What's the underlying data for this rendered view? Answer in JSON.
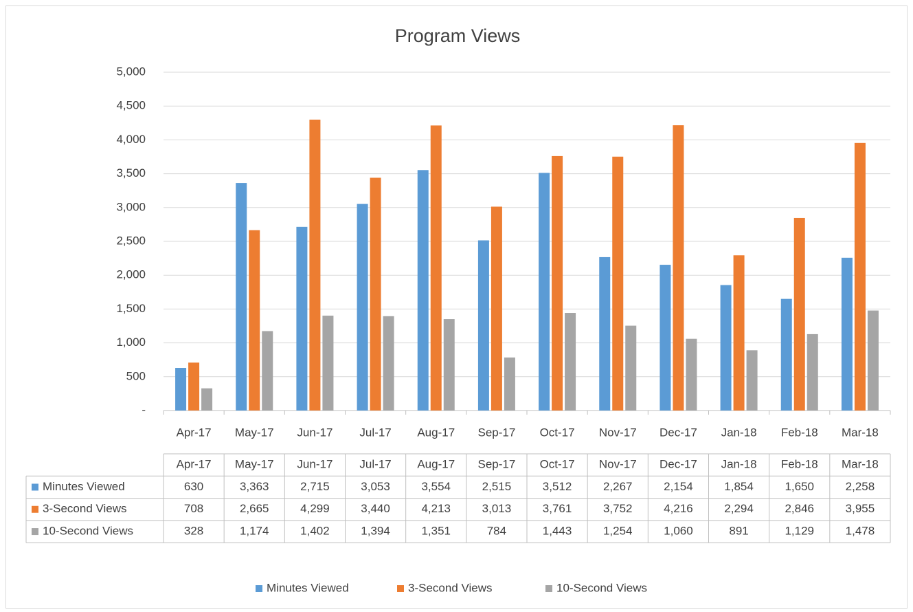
{
  "chart_data": {
    "type": "bar",
    "title": "Program Views",
    "categories": [
      "Apr-17",
      "May-17",
      "Jun-17",
      "Jul-17",
      "Aug-17",
      "Sep-17",
      "Oct-17",
      "Nov-17",
      "Dec-17",
      "Jan-18",
      "Feb-18",
      "Mar-18"
    ],
    "series": [
      {
        "name": "Minutes Viewed",
        "color": "#5b9bd5",
        "values": [
          630,
          3363,
          2715,
          3053,
          3554,
          2515,
          3512,
          2267,
          2154,
          1854,
          1650,
          2258
        ],
        "value_labels": [
          "630",
          "3,363",
          "2,715",
          "3,053",
          "3,554",
          "2,515",
          "3,512",
          "2,267",
          "2,154",
          "1,854",
          "1,650",
          "2,258"
        ]
      },
      {
        "name": "3-Second Views",
        "color": "#ed7d31",
        "values": [
          708,
          2665,
          4299,
          3440,
          4213,
          3013,
          3761,
          3752,
          4216,
          2294,
          2846,
          3955
        ],
        "value_labels": [
          "708",
          "2,665",
          "4,299",
          "3,440",
          "4,213",
          "3,013",
          "3,761",
          "3,752",
          "4,216",
          "2,294",
          "2,846",
          "3,955"
        ]
      },
      {
        "name": "10-Second Views",
        "color": "#a5a5a5",
        "values": [
          328,
          1174,
          1402,
          1394,
          1351,
          784,
          1443,
          1254,
          1060,
          891,
          1129,
          1478
        ],
        "value_labels": [
          "328",
          "1,174",
          "1,402",
          "1,394",
          "1,351",
          "784",
          "1,443",
          "1,254",
          "1,060",
          "891",
          "1,129",
          "1,478"
        ]
      }
    ],
    "ylim": [
      0,
      5000
    ],
    "yticks": [
      {
        "value": 0,
        "label": "-"
      },
      500,
      {
        "value": 1000,
        "label": "1,000"
      },
      {
        "value": 1500,
        "label": "1,500"
      },
      {
        "value": 2000,
        "label": "2,000"
      },
      {
        "value": 2500,
        "label": "2,500"
      },
      {
        "value": 3000,
        "label": "3,000"
      },
      {
        "value": 3500,
        "label": "3,500"
      },
      {
        "value": 4000,
        "label": "4,000"
      },
      {
        "value": 4500,
        "label": "4,500"
      },
      {
        "value": 5000,
        "label": "5,000"
      }
    ],
    "grid": true,
    "legend": "bottom"
  }
}
